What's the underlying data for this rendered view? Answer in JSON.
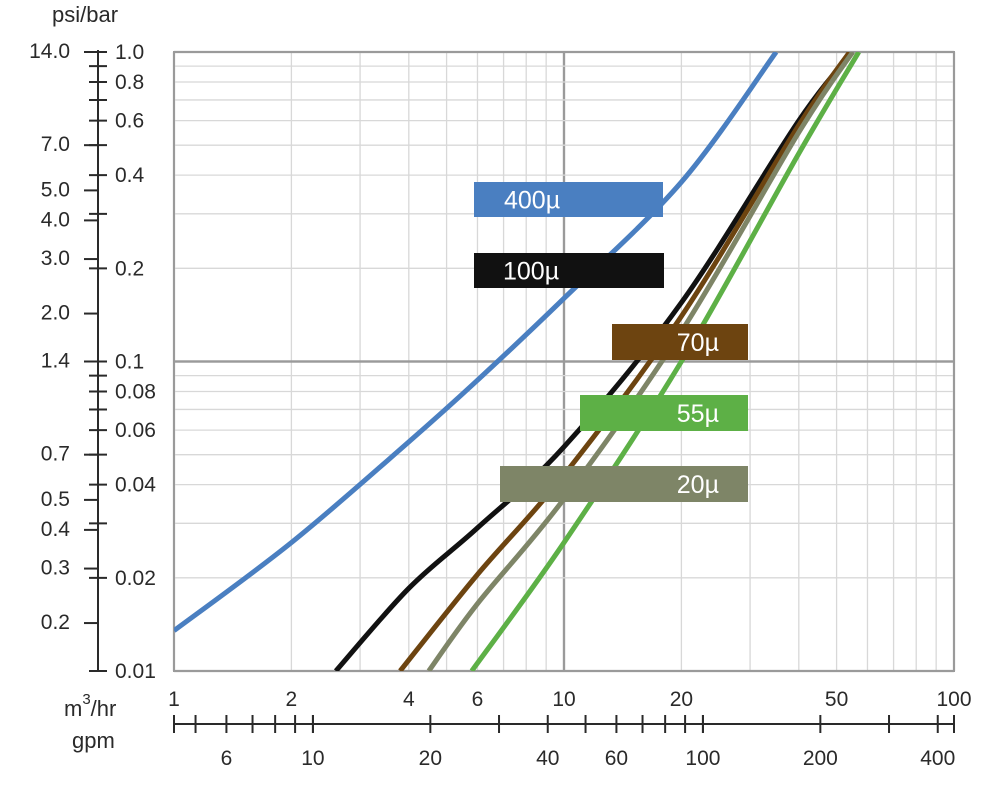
{
  "chart_data": {
    "type": "line",
    "title": "",
    "y_unit_label": "psi/bar",
    "x_unit_label_primary": "m3/hr",
    "x_unit_label_primary_base": "m",
    "x_unit_label_primary_sup": "3",
    "x_unit_label_primary_rest": "/hr",
    "x_unit_label_secondary": "gpm",
    "x_scale": "log",
    "y_scale": "log",
    "xlim": [
      1,
      100
    ],
    "ylim_bar": [
      0.01,
      1.0
    ],
    "ylim_psi": [
      0.14,
      14.0
    ],
    "grid": true,
    "x_ticks_m3hr": [
      {
        "value": 1,
        "label": "1"
      },
      {
        "value": 2,
        "label": "2"
      },
      {
        "value": 4,
        "label": "4"
      },
      {
        "value": 6,
        "label": "6"
      },
      {
        "value": 10,
        "label": "10"
      },
      {
        "value": 20,
        "label": "20"
      },
      {
        "value": 50,
        "label": "50"
      },
      {
        "value": 100,
        "label": "100"
      }
    ],
    "x_ticks_gpm": [
      {
        "value": 6,
        "label": "6"
      },
      {
        "value": 10,
        "label": "10"
      },
      {
        "value": 20,
        "label": "20"
      },
      {
        "value": 40,
        "label": "40"
      },
      {
        "value": 60,
        "label": "60"
      },
      {
        "value": 100,
        "label": "100"
      },
      {
        "value": 200,
        "label": "200"
      },
      {
        "value": 400,
        "label": "400"
      }
    ],
    "y_ticks_bar": [
      {
        "value": 1.0,
        "label": "1.0"
      },
      {
        "value": 0.8,
        "label": "0.8"
      },
      {
        "value": 0.6,
        "label": "0.6"
      },
      {
        "value": 0.4,
        "label": "0.4"
      },
      {
        "value": 0.2,
        "label": "0.2"
      },
      {
        "value": 0.1,
        "label": "0.1"
      },
      {
        "value": 0.08,
        "label": "0.08"
      },
      {
        "value": 0.06,
        "label": "0.06"
      },
      {
        "value": 0.04,
        "label": "0.04"
      },
      {
        "value": 0.02,
        "label": "0.02"
      },
      {
        "value": 0.01,
        "label": "0.01"
      }
    ],
    "y_ticks_psi": [
      {
        "value": 14.0,
        "label": "14.0"
      },
      {
        "value": 7.0,
        "label": "7.0"
      },
      {
        "value": 5.0,
        "label": "5.0"
      },
      {
        "value": 4.0,
        "label": "4.0"
      },
      {
        "value": 3.0,
        "label": "3.0"
      },
      {
        "value": 2.0,
        "label": "2.0"
      },
      {
        "value": 1.4,
        "label": "1.4"
      },
      {
        "value": 0.7,
        "label": "0.7"
      },
      {
        "value": 0.5,
        "label": "0.5"
      },
      {
        "value": 0.4,
        "label": "0.4"
      },
      {
        "value": 0.3,
        "label": "0.3"
      },
      {
        "value": 0.2,
        "label": "0.2"
      }
    ],
    "series": [
      {
        "name": "400µ",
        "color": "#4a7fc1",
        "points": [
          [
            1,
            0.0135
          ],
          [
            2,
            0.026
          ],
          [
            4,
            0.055
          ],
          [
            6,
            0.087
          ],
          [
            10,
            0.16
          ],
          [
            20,
            0.38
          ],
          [
            35,
            1.0
          ]
        ]
      },
      {
        "name": "100µ",
        "color": "#111111",
        "points": [
          [
            2.6,
            0.01
          ],
          [
            4,
            0.0185
          ],
          [
            6,
            0.029
          ],
          [
            10,
            0.053
          ],
          [
            20,
            0.155
          ],
          [
            40,
            0.6
          ],
          [
            55,
            1.0
          ]
        ]
      },
      {
        "name": "70µ",
        "color": "#6d4410",
        "points": [
          [
            3.8,
            0.01
          ],
          [
            6,
            0.0205
          ],
          [
            10,
            0.043
          ],
          [
            20,
            0.14
          ],
          [
            40,
            0.58
          ],
          [
            54,
            1.0
          ]
        ]
      },
      {
        "name": "20µ",
        "color": "#7e8567",
        "points": [
          [
            4.5,
            0.01
          ],
          [
            6,
            0.0165
          ],
          [
            10,
            0.036
          ],
          [
            20,
            0.125
          ],
          [
            40,
            0.55
          ],
          [
            55,
            1.0
          ]
        ]
      },
      {
        "name": "55µ",
        "color": "#5db046",
        "points": [
          [
            5.8,
            0.01
          ],
          [
            10,
            0.026
          ],
          [
            20,
            0.1
          ],
          [
            40,
            0.47
          ],
          [
            57,
            1.0
          ]
        ]
      }
    ],
    "legend_tags": [
      {
        "label": "400µ",
        "color": "#4a7fc1"
      },
      {
        "label": "100µ",
        "color": "#111111"
      },
      {
        "label": "70µ",
        "color": "#6d4410"
      },
      {
        "label": "55µ",
        "color": "#5db046"
      },
      {
        "label": "20µ",
        "color": "#7e8567"
      }
    ]
  }
}
